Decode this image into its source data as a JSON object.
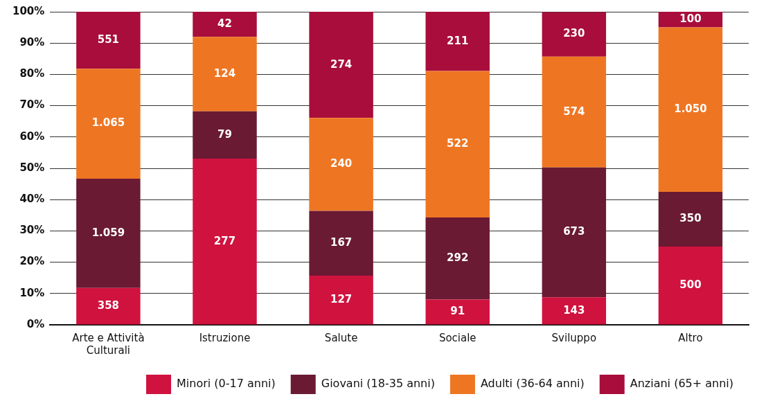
{
  "chart_data": {
    "type": "bar",
    "stacked": true,
    "categories": [
      "Arte e Attività Culturali",
      "Istruzione",
      "Salute",
      "Sociale",
      "Sviluppo",
      "Altro"
    ],
    "series": [
      {
        "name": "Minori (0-17 anni)",
        "color": "#d0123f",
        "values": [
          11.8,
          53.1,
          15.7,
          8.1,
          8.8,
          25
        ]
      },
      {
        "name": "Giovani (18-35 anni)",
        "color": "#6a1a33",
        "values": [
          34.9,
          15.1,
          20.7,
          26.2,
          41.5,
          17.5
        ]
      },
      {
        "name": "Adulti (36-64 anni)",
        "color": "#ee7623",
        "values": [
          35.1,
          23.8,
          29.7,
          46.8,
          35.4,
          52.5
        ]
      },
      {
        "name": "Anziani (65+ anni)",
        "color": "#a80d3b",
        "values": [
          18.2,
          8.0,
          33.9,
          18.9,
          14.2,
          5
        ]
      }
    ],
    "annotations": [
      "358",
      "1.059",
      "1.065",
      "551",
      "277",
      "79",
      "124",
      "42",
      "127",
      "167",
      "240",
      "274",
      "91",
      "292",
      "522",
      "211",
      "143",
      "673",
      "574",
      "230",
      "500",
      "350",
      "1.050",
      "100"
    ],
    "ylim": [
      0,
      100
    ],
    "yticks": [
      {
        "value": 0,
        "label": "0%"
      },
      {
        "value": 10,
        "label": "10%"
      },
      {
        "value": 20,
        "label": "20%"
      },
      {
        "value": 30,
        "label": "30%"
      },
      {
        "value": 40,
        "label": "40%"
      },
      {
        "value": 50,
        "label": "50%"
      },
      {
        "value": 60,
        "label": "60%"
      },
      {
        "value": 70,
        "label": "70%"
      },
      {
        "value": 80,
        "label": "80%"
      },
      {
        "value": 90,
        "label": "90%"
      },
      {
        "value": 100,
        "label": "100%"
      }
    ],
    "grid": "y",
    "legend": "bottom right"
  }
}
